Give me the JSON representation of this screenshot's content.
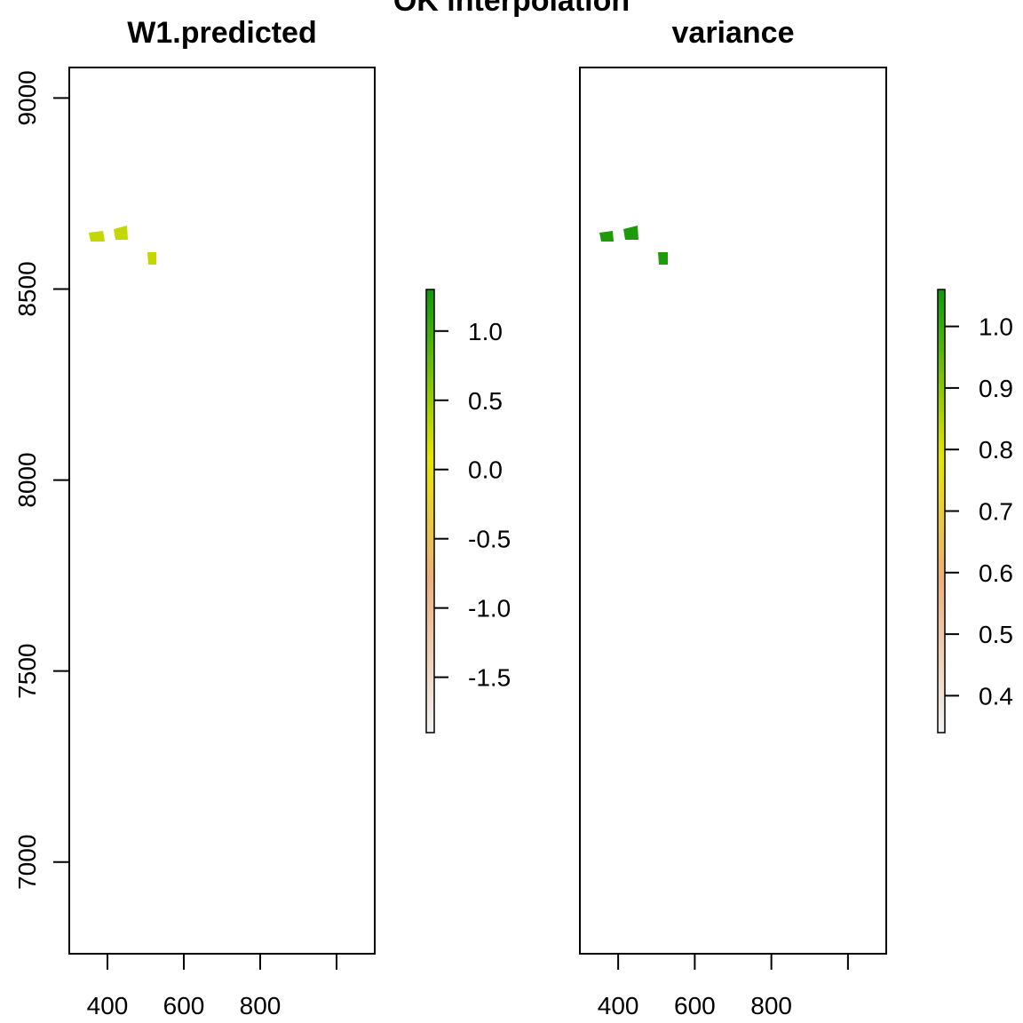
{
  "main_title": "OK interpolation",
  "panels": [
    {
      "title": "W1.predicted",
      "x_ticks": [
        "400",
        "600",
        "800",
        ""
      ],
      "y_ticks": [
        "7000",
        "7500",
        "8000",
        "8500",
        "9000"
      ],
      "legend_labels": [
        "1.0",
        "0.5",
        "0.0",
        "-0.5",
        "-1.0",
        "-1.5"
      ]
    },
    {
      "title": "variance",
      "x_ticks": [
        "400",
        "600",
        "800",
        ""
      ],
      "legend_labels": [
        "1.0",
        "0.9",
        "0.8",
        "0.7",
        "0.6",
        "0.5",
        "0.4"
      ]
    }
  ],
  "chart_data": [
    {
      "type": "heatmap",
      "title": "W1.predicted",
      "xlim": [
        300,
        1100
      ],
      "ylim": [
        6760,
        9080
      ],
      "x_ticks": [
        400,
        600,
        800,
        1000
      ],
      "y_ticks": [
        7000,
        7500,
        8000,
        8500,
        9000
      ],
      "colorbar": {
        "min": -1.9,
        "max": 1.3,
        "ticks": [
          1.0,
          0.5,
          0.0,
          -0.5,
          -1.0,
          -1.5
        ],
        "colors": [
          "#F2F2F2",
          "#EBB07E",
          "#E6E600",
          "#0A9B0A"
        ]
      }
    },
    {
      "type": "heatmap",
      "title": "variance",
      "xlim": [
        300,
        1100
      ],
      "ylim": [
        6760,
        9080
      ],
      "x_ticks": [
        400,
        600,
        800,
        1000
      ],
      "colorbar": {
        "min": 0.34,
        "max": 1.06,
        "ticks": [
          1.0,
          0.9,
          0.8,
          0.7,
          0.6,
          0.5,
          0.4
        ],
        "colors": [
          "#F2F2F2",
          "#EBB07E",
          "#E6E600",
          "#0A9B0A"
        ]
      }
    }
  ]
}
